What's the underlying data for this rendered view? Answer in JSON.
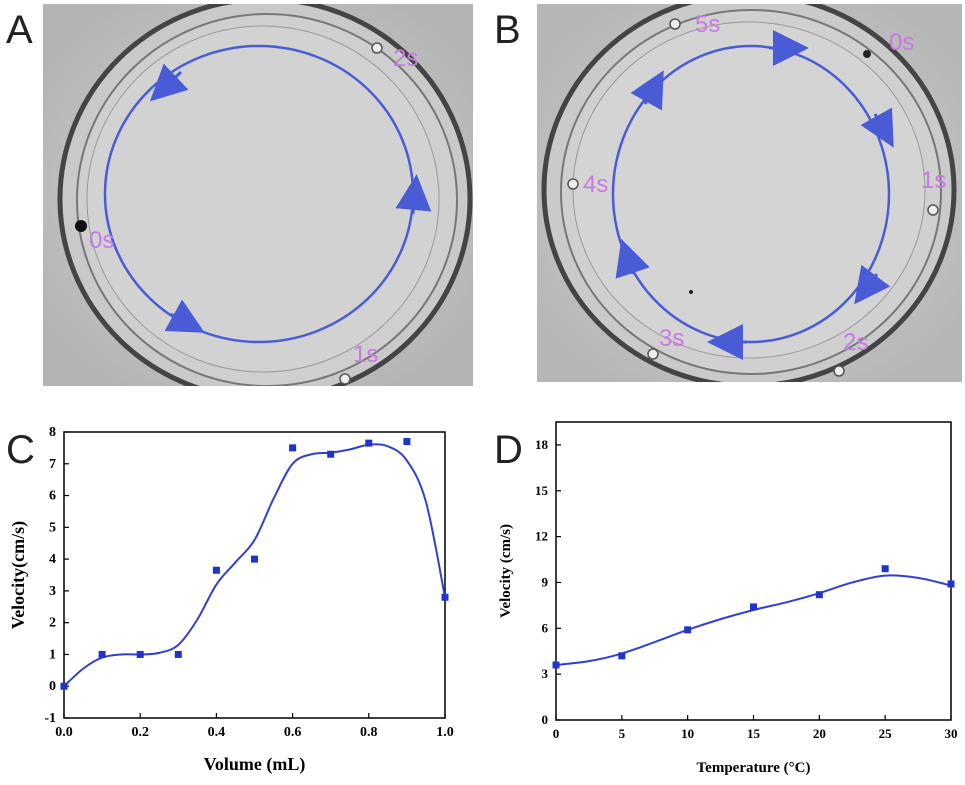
{
  "panels": {
    "A": {
      "letter": "A",
      "time_labels": [
        "0s",
        "1s",
        "2s"
      ],
      "accent_color": "#4a5bd6",
      "label_color": "#c77be0"
    },
    "B": {
      "letter": "B",
      "time_labels": [
        "0s",
        "1s",
        "2s",
        "3s",
        "4s",
        "5s"
      ],
      "accent_color": "#4a5bd6",
      "label_color": "#c77be0"
    },
    "C": {
      "letter": "C"
    },
    "D": {
      "letter": "D"
    }
  },
  "chart_data": [
    {
      "panel": "C",
      "type": "scatter",
      "xlabel": "Volume (mL)",
      "ylabel": "Velocity(cm/s)",
      "xlim": [
        0.0,
        1.0
      ],
      "ylim": [
        -1,
        8
      ],
      "xticks": [
        "0.0",
        "0.2",
        "0.4",
        "0.6",
        "0.8",
        "1.0"
      ],
      "yticks": [
        "-1",
        "0",
        "1",
        "2",
        "3",
        "4",
        "5",
        "6",
        "7",
        "8"
      ],
      "points": {
        "x": [
          0.0,
          0.1,
          0.2,
          0.3,
          0.4,
          0.5,
          0.6,
          0.7,
          0.8,
          0.9,
          1.0
        ],
        "y": [
          0.0,
          1.0,
          1.0,
          1.0,
          3.65,
          4.0,
          7.5,
          7.3,
          7.65,
          7.7,
          2.8
        ]
      },
      "fit_curve": {
        "x": [
          0.0,
          0.05,
          0.1,
          0.15,
          0.2,
          0.25,
          0.3,
          0.35,
          0.4,
          0.45,
          0.5,
          0.55,
          0.6,
          0.65,
          0.7,
          0.75,
          0.8,
          0.85,
          0.9,
          0.95,
          1.0
        ],
        "y": [
          0.0,
          0.55,
          0.9,
          1.0,
          1.0,
          1.05,
          1.3,
          2.1,
          3.2,
          3.9,
          4.6,
          5.9,
          7.0,
          7.3,
          7.35,
          7.45,
          7.6,
          7.55,
          7.1,
          5.8,
          2.8
        ]
      },
      "marker_color": "#2233cc",
      "line_color": "#3340cc"
    },
    {
      "panel": "D",
      "type": "scatter",
      "xlabel": "Temperature (°C)",
      "ylabel": "Velocity (cm/s)",
      "xlim": [
        0,
        30
      ],
      "ylim": [
        0,
        19.5
      ],
      "xticks": [
        "0",
        "5",
        "10",
        "15",
        "20",
        "25",
        "30"
      ],
      "yticks": [
        "0",
        "3",
        "6",
        "9",
        "12",
        "15",
        "18"
      ],
      "points": {
        "x": [
          0,
          5,
          10,
          15,
          20,
          25,
          30
        ],
        "y": [
          3.6,
          4.2,
          5.9,
          7.4,
          8.2,
          9.9,
          8.9
        ]
      },
      "fit_curve": {
        "x": [
          0,
          2.5,
          5,
          7.5,
          10,
          12.5,
          15,
          17.5,
          20,
          22.5,
          25,
          27.5,
          30
        ],
        "y": [
          3.6,
          3.85,
          4.35,
          5.1,
          5.9,
          6.6,
          7.2,
          7.7,
          8.3,
          9.0,
          9.45,
          9.3,
          8.8
        ]
      },
      "marker_color": "#2233cc",
      "line_color": "#3340cc"
    }
  ]
}
